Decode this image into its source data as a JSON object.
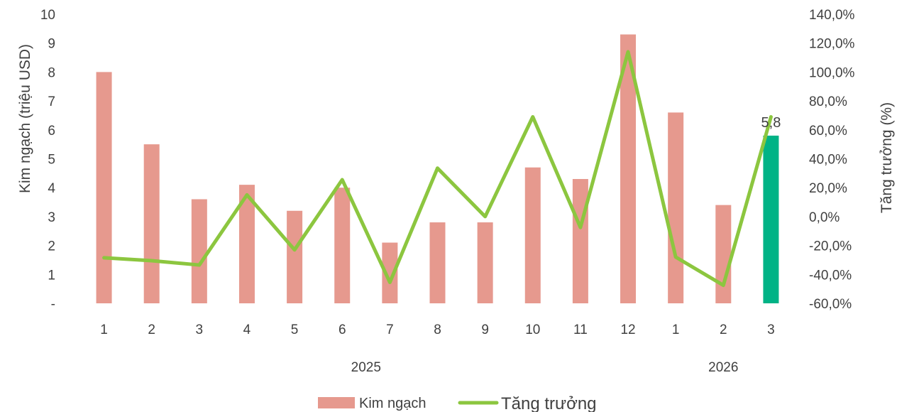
{
  "chart_data": {
    "type": "bar",
    "categories": [
      "1",
      "2",
      "3",
      "4",
      "5",
      "6",
      "7",
      "8",
      "9",
      "10",
      "11",
      "12",
      "1",
      "2",
      "3"
    ],
    "groups": [
      {
        "label": "2025",
        "span": [
          0,
          11
        ]
      },
      {
        "label": "2026",
        "span": [
          12,
          14
        ]
      }
    ],
    "series": [
      {
        "name": "Kim ngạch",
        "type": "bar",
        "axis": "left",
        "color": "#E6998E",
        "highlight_color": "#00B386",
        "highlight_index": 14,
        "values": [
          8.0,
          5.5,
          3.6,
          4.1,
          3.2,
          4.0,
          2.1,
          2.8,
          2.8,
          4.7,
          4.3,
          9.3,
          6.6,
          3.4,
          5.8
        ]
      },
      {
        "name": "Tăng trưởng",
        "type": "line",
        "axis": "right",
        "color": "#8CC63F",
        "values": [
          -28.5,
          -30.5,
          -33.5,
          15.0,
          -23.0,
          25.5,
          -45.5,
          33.5,
          0.0,
          69.0,
          -7.5,
          114.0,
          -28.0,
          -47.5,
          69.0
        ]
      }
    ],
    "data_labels": [
      {
        "index": 14,
        "text": "5,8"
      }
    ],
    "left_axis": {
      "title": "Kim ngạch (triệu USD)",
      "min": 0,
      "max": 10,
      "ticks": [
        "-",
        "1",
        "2",
        "3",
        "4",
        "5",
        "6",
        "7",
        "8",
        "9",
        "10"
      ]
    },
    "right_axis": {
      "title": "Tăng trưởng (%)",
      "min": -60,
      "max": 140,
      "ticks": [
        "-60,0%",
        "-40,0%",
        "-20,0%",
        "0,0%",
        "20,0%",
        "40,0%",
        "60,0%",
        "80,0%",
        "100,0%",
        "120,0%",
        "140,0%"
      ]
    },
    "legend": {
      "position": "bottom",
      "items": [
        {
          "label": "Kim ngạch",
          "marker": "bar",
          "color": "#E6998E"
        },
        {
          "label": "Tăng trưởng",
          "marker": "line",
          "color": "#8CC63F"
        }
      ]
    },
    "grid": false
  }
}
